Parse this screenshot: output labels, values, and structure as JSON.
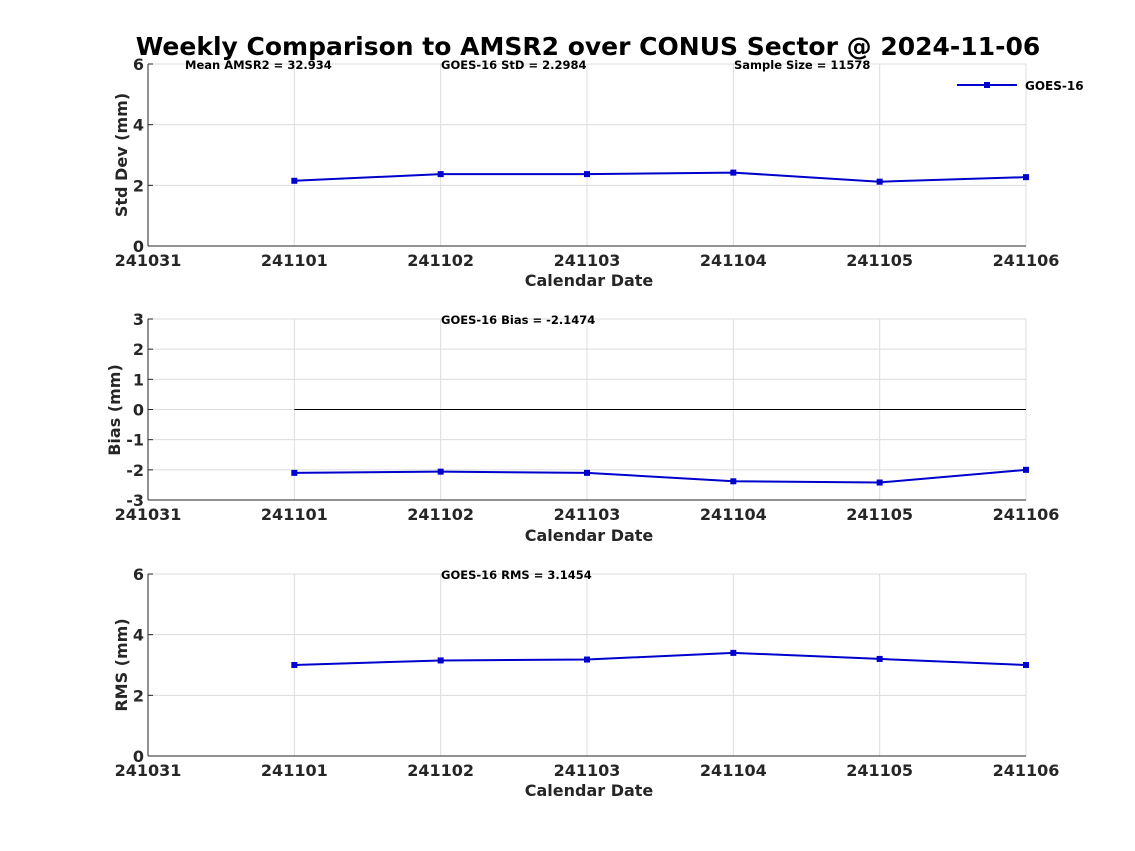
{
  "chart_data": {
    "title": "Weekly Comparison to AMSR2 over CONUS Sector @ 2024-11-06",
    "type": "line",
    "legend": {
      "label": "GOES-16",
      "placement": "top-right"
    },
    "line_color": "#0000cc",
    "categories": [
      "241031",
      "241101",
      "241102",
      "241103",
      "241104",
      "241105",
      "241106"
    ],
    "subplots": [
      {
        "id": "std",
        "type": "line",
        "ylabel": "Std Dev (mm)",
        "xlabel": "Calendar Date",
        "ylim": [
          0,
          6
        ],
        "yticks": [
          "0",
          "2",
          "4",
          "6"
        ],
        "grid": true,
        "series": [
          {
            "name": "GOES-16",
            "x": [
              1,
              2,
              3,
              4,
              5,
              6
            ],
            "values": [
              2.15,
              2.37,
              2.37,
              2.42,
              2.12,
              2.27
            ]
          }
        ],
        "annotations": [
          "Mean AMSR2 = 32.934",
          "GOES-16 StD = 2.2984",
          "Sample Size = 11578"
        ]
      },
      {
        "id": "bias",
        "type": "line",
        "ylabel": "Bias (mm)",
        "xlabel": "Calendar Date",
        "ylim": [
          -3,
          3
        ],
        "yticks": [
          "-3",
          "-2",
          "-1",
          "0",
          "1",
          "2",
          "3"
        ],
        "grid": true,
        "zero_line": true,
        "series": [
          {
            "name": "GOES-16",
            "x": [
              1,
              2,
              3,
              4,
              5,
              6
            ],
            "values": [
              -2.1,
              -2.06,
              -2.1,
              -2.38,
              -2.42,
              -2.0
            ]
          }
        ],
        "annotations": [
          "GOES-16 Bias  = -2.1474"
        ]
      },
      {
        "id": "rms",
        "type": "line",
        "ylabel": "RMS (mm)",
        "xlabel": "Calendar Date",
        "ylim": [
          0,
          6
        ],
        "yticks": [
          "0",
          "2",
          "4",
          "6"
        ],
        "grid": true,
        "series": [
          {
            "name": "GOES-16",
            "x": [
              1,
              2,
              3,
              4,
              5,
              6
            ],
            "values": [
              3.0,
              3.15,
              3.18,
              3.4,
              3.2,
              3.0
            ]
          }
        ],
        "annotations": [
          "GOES-16 RMS = 3.1454"
        ]
      }
    ]
  }
}
